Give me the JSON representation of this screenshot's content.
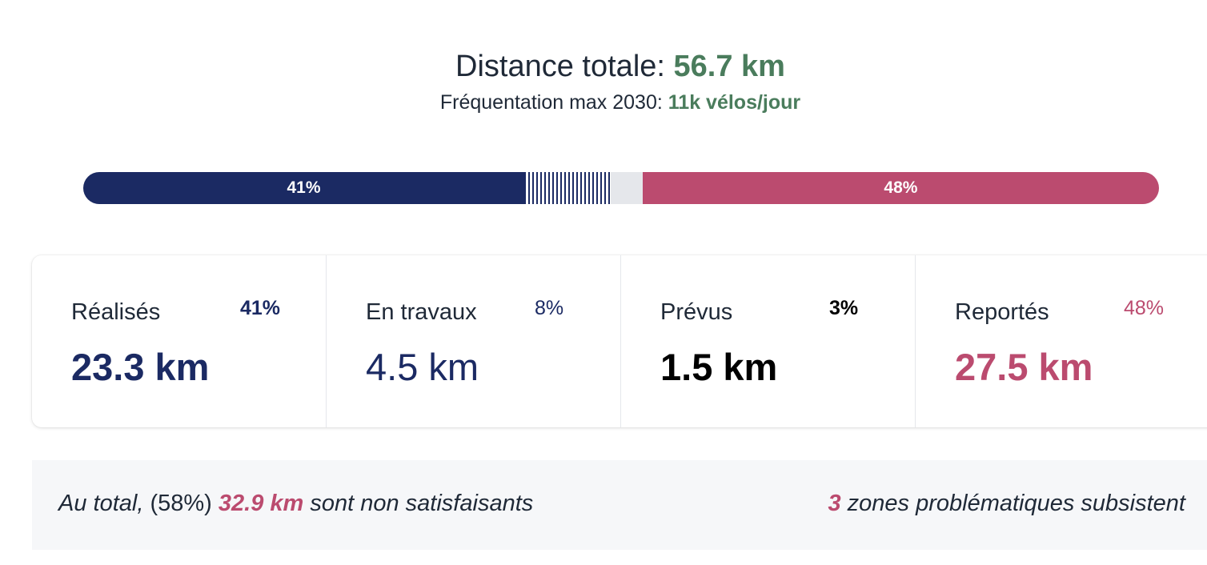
{
  "header": {
    "title_prefix": "Distance totale: ",
    "title_value": "56.7 km",
    "subtitle_prefix": "Fréquentation max 2030: ",
    "subtitle_value": "11k vélos/jour"
  },
  "progress": {
    "colors": {
      "done": "#1b2a63",
      "works": "#1b2a63",
      "planned": "#e5e7eb",
      "postponed": "#bb4b6f"
    },
    "segments": [
      {
        "key": "done",
        "fraction": 0.41,
        "label": "41%"
      },
      {
        "key": "works",
        "fraction": 0.08,
        "label": ""
      },
      {
        "key": "planned",
        "fraction": 0.03,
        "label": ""
      },
      {
        "key": "postponed",
        "fraction": 0.48,
        "label": "48%"
      }
    ]
  },
  "cards": [
    {
      "label": "Réalisés",
      "percent": "41%",
      "value": "23.3 km",
      "color": "#1b2a63"
    },
    {
      "label": "En travaux",
      "percent": "8%",
      "value": "4.5 km",
      "color": "#1b2a63"
    },
    {
      "label": "Prévus",
      "percent": "3%",
      "value": "1.5 km",
      "color": "#000000"
    },
    {
      "label": "Reportés",
      "percent": "48%",
      "value": "27.5 km",
      "color": "#bb4b6f"
    }
  ],
  "summary": {
    "left_prefix": "Au total, ",
    "left_percent": "(58%) ",
    "left_value": "32.9 km",
    "left_suffix": " sont non satisfaisants",
    "right_count": "3",
    "right_suffix": " zones problématiques subsistent"
  }
}
